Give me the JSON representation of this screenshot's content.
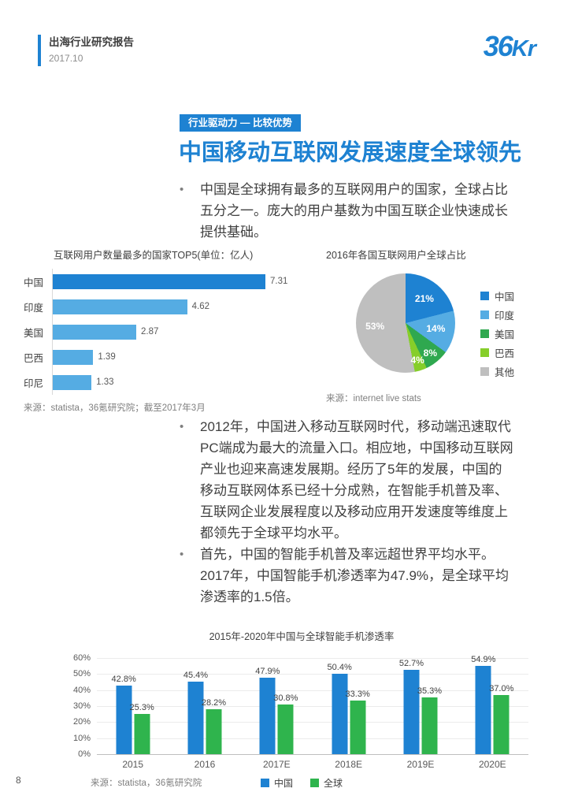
{
  "header": {
    "report_title": "出海行业研究报告",
    "date": "2017.10",
    "logo_part1": "36",
    "logo_part2": "Kr"
  },
  "page_number": "8",
  "section_tag": "行业驱动力 — 比较优势",
  "main_title": "中国移动互联网发展速度全球领先",
  "bullets": {
    "b1": "中国是全球拥有最多的互联网用户的国家，全球占比五分之一。庞大的用户基数为中国互联企业快速成长提供基础。",
    "b2": "2012年，中国进入移动互联网时代，移动端迅速取代PC端成为最大的流量入口。相应地，中国移动互联网产业也迎来高速发展期。经历了5年的发展，中国的移动互联网体系已经十分成熟，在智能手机普及率、互联网企业发展程度以及移动应用开发速度等维度上都领先于全球平均水平。",
    "b3": "首先，中国的智能手机普及率远超世界平均水平。2017年，中国智能手机渗透率为47.9%，是全球平均渗透率的1.5倍。"
  },
  "colors": {
    "brand_blue": "#1E82D2",
    "light_blue": "#55ACE3",
    "green": "#2FA84F",
    "lime": "#86CE2A",
    "gray": "#BFBFBF",
    "bar_green": "#2FB44D"
  },
  "chart_data": [
    {
      "type": "bar",
      "orientation": "horizontal",
      "title": "互联网用户数量最多的国家TOP5(单位：亿人)",
      "categories": [
        "中国",
        "印度",
        "美国",
        "巴西",
        "印尼"
      ],
      "values": [
        7.31,
        4.62,
        2.87,
        1.39,
        1.33
      ],
      "bar_colors": [
        "#1E82D2",
        "#55ACE3",
        "#55ACE3",
        "#55ACE3",
        "#55ACE3"
      ],
      "xlim": [
        0,
        8
      ],
      "grid": false,
      "source": "来源：statista，36氪研究院；截至2017年3月"
    },
    {
      "type": "pie",
      "title": "2016年各国互联网用户全球占比",
      "labels": [
        "中国",
        "印度",
        "美国",
        "巴西",
        "其他"
      ],
      "values": [
        21,
        14,
        8,
        4,
        53
      ],
      "colors": [
        "#1E82D2",
        "#55ACE3",
        "#2FA84F",
        "#86CE2A",
        "#BFBFBF"
      ],
      "legend_position": "right",
      "source": "来源：internet live stats"
    },
    {
      "type": "bar",
      "title": "2015年-2020年中国与全球智能手机渗透率",
      "categories": [
        "2015",
        "2016",
        "2017E",
        "2018E",
        "2019E",
        "2020E"
      ],
      "series": [
        {
          "name": "中国",
          "color": "#1E82D2",
          "values": [
            42.8,
            45.4,
            47.9,
            50.4,
            52.7,
            54.9
          ]
        },
        {
          "name": "全球",
          "color": "#2FB44D",
          "values": [
            25.3,
            28.2,
            30.8,
            33.3,
            35.3,
            37.0
          ]
        }
      ],
      "ylim": [
        0,
        60
      ],
      "yticks": [
        "0%",
        "10%",
        "20%",
        "30%",
        "40%",
        "50%",
        "60%"
      ],
      "grid": true,
      "legend_position": "bottom",
      "source": "来源：statista，36氪研究院"
    }
  ]
}
